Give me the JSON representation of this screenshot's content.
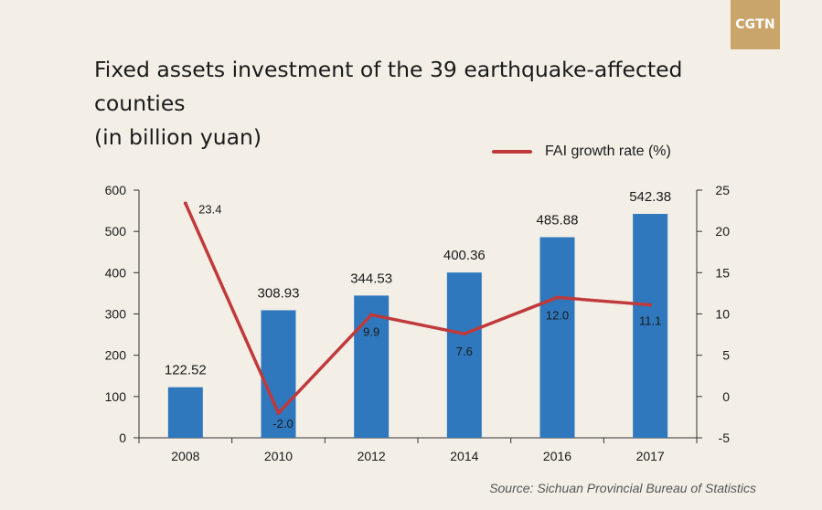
{
  "header": {
    "logo_text": "CGTN",
    "title_line1": "Fixed assets investment of the 39 earthquake-affected counties",
    "title_line2": "(in billion yuan)"
  },
  "source": "Source: Sichuan Provincial Bureau of Statistics",
  "chart_data": {
    "type": "bar",
    "title": "Fixed assets investment of the 39 earthquake-affected counties (in billion yuan)",
    "categories": [
      "2008",
      "2010",
      "2012",
      "2014",
      "2016",
      "2017"
    ],
    "series": [
      {
        "type": "bar",
        "axis": "left",
        "values": [
          122.52,
          308.93,
          344.53,
          400.36,
          485.88,
          542.38
        ],
        "labels": [
          "122.52",
          "308.93",
          "344.53",
          "400.36",
          "485.88",
          "542.38"
        ],
        "color": "#2f78bd"
      },
      {
        "type": "line",
        "axis": "right",
        "name": "FAI growth rate (%)",
        "values": [
          23.4,
          -2.0,
          9.9,
          7.6,
          12.0,
          11.1
        ],
        "labels": [
          "23.4",
          "-2.0",
          "9.9",
          "7.6",
          "12.0",
          "11.1"
        ],
        "color": "#c0393b"
      }
    ],
    "y_left": {
      "range": [
        0,
        600
      ],
      "ticks": [
        "0",
        "100",
        "200",
        "300",
        "400",
        "500",
        "600"
      ]
    },
    "y_right": {
      "range": [
        -5,
        25
      ],
      "ticks": [
        "-5",
        "0",
        "5",
        "10",
        "15",
        "20",
        "25"
      ]
    },
    "grid": false,
    "legend_position": "top-right"
  }
}
